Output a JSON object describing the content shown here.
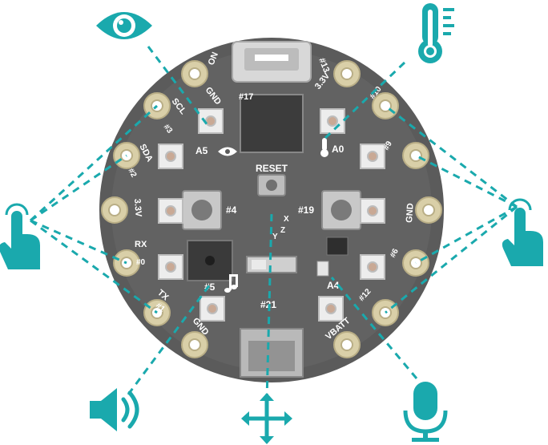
{
  "colors": {
    "accent": "#1aa9ad",
    "board": "#5a5a5a",
    "pad": "#d9cfa8"
  },
  "board": {
    "chip_label": "",
    "reset": "RESET",
    "pads": {
      "on": "ON",
      "n13": "#13",
      "gnd_top": "GND",
      "scl": "SCL",
      "n3": "#3",
      "sda": "SDA",
      "n2": "#2",
      "v33_left": "3.3V",
      "rx": "RX",
      "n0": "#0",
      "tx": "TX",
      "n1": "#1",
      "gnd_bl": "GND",
      "v33_top": "3.3V",
      "n10": "#10",
      "n9": "#9",
      "gnd_right": "GND",
      "n6": "#6",
      "n12": "#12",
      "vbatt": "VBATT"
    },
    "labels": {
      "n17": "#17",
      "a5": "A5",
      "a0": "A0",
      "n4": "#4",
      "n19": "#19",
      "n5": "#5",
      "n21": "#21",
      "a4": "A4",
      "x": "X",
      "y": "Y",
      "z": "Z"
    }
  },
  "icons": [
    "eye-icon",
    "thermometer-icon",
    "pointing-hand-left-icon",
    "pointing-hand-right-icon",
    "speaker-icon",
    "move-arrows-icon",
    "microphone-icon"
  ]
}
